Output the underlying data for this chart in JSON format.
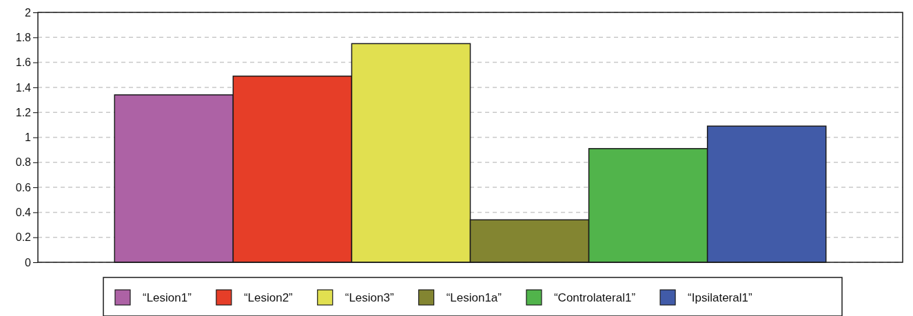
{
  "chart_data": {
    "type": "bar",
    "categories": [
      null
    ],
    "series": [
      {
        "name": "“Lesion1”",
        "color": "#ad62a5",
        "values": [
          1.34
        ]
      },
      {
        "name": "“Lesion2”",
        "color": "#e63e28",
        "values": [
          1.49
        ]
      },
      {
        "name": "“Lesion3”",
        "color": "#e1e050",
        "values": [
          1.75
        ]
      },
      {
        "name": "“Lesion1a”",
        "color": "#838531",
        "values": [
          0.34
        ]
      },
      {
        "name": "“Controlateral1”",
        "color": "#51b44b",
        "values": [
          0.91
        ]
      },
      {
        "name": "“Ipsilateral1”",
        "color": "#415ba8",
        "values": [
          1.09
        ]
      }
    ],
    "ylim": [
      0,
      2
    ],
    "yticks": [
      0,
      0.2,
      0.4,
      0.6,
      0.8,
      1,
      1.2,
      1.4,
      1.6,
      1.8,
      2
    ],
    "grid": "y",
    "legend": "bottom"
  }
}
